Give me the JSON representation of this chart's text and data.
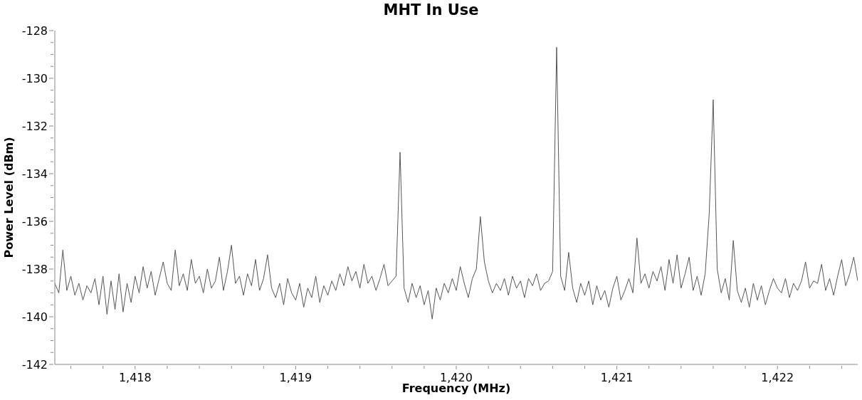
{
  "chart_data": {
    "type": "line",
    "title": "MHT In Use",
    "xlabel": "Frequency (MHz)",
    "ylabel": "Power Level (dBm)",
    "xlim": [
      1417.5,
      1422.5
    ],
    "xticks": [
      {
        "value": 1417.6,
        "label": null
      },
      {
        "value": 1417.8,
        "label": null
      },
      {
        "value": 1418,
        "label": "1,418"
      },
      {
        "value": 1418.2,
        "label": null
      },
      {
        "value": 1418.4,
        "label": null
      },
      {
        "value": 1418.6,
        "label": null
      },
      {
        "value": 1418.8,
        "label": null
      },
      {
        "value": 1419,
        "label": "1,419"
      },
      {
        "value": 1419.2,
        "label": null
      },
      {
        "value": 1419.4,
        "label": null
      },
      {
        "value": 1419.6,
        "label": null
      },
      {
        "value": 1419.8,
        "label": null
      },
      {
        "value": 1420,
        "label": "1,420"
      },
      {
        "value": 1420.2,
        "label": null
      },
      {
        "value": 1420.4,
        "label": null
      },
      {
        "value": 1420.6,
        "label": null
      },
      {
        "value": 1420.8,
        "label": null
      },
      {
        "value": 1421,
        "label": "1,421"
      },
      {
        "value": 1421.2,
        "label": null
      },
      {
        "value": 1421.4,
        "label": null
      },
      {
        "value": 1421.6,
        "label": null
      },
      {
        "value": 1421.8,
        "label": null
      },
      {
        "value": 1422,
        "label": "1,422"
      },
      {
        "value": 1422.2,
        "label": null
      },
      {
        "value": 1422.4,
        "label": null
      }
    ],
    "ylim": [
      -142,
      -128
    ],
    "yticks": [
      -142,
      {
        "value": -141.5,
        "label": null
      },
      {
        "value": -141,
        "label": null
      },
      {
        "value": -140.5,
        "label": null
      },
      -140,
      {
        "value": -139.5,
        "label": null
      },
      {
        "value": -139,
        "label": null
      },
      {
        "value": -138.5,
        "label": null
      },
      -138,
      {
        "value": -137.5,
        "label": null
      },
      {
        "value": -137,
        "label": null
      },
      {
        "value": -136.5,
        "label": null
      },
      -136,
      {
        "value": -135.5,
        "label": null
      },
      {
        "value": -135,
        "label": null
      },
      {
        "value": -134.5,
        "label": null
      },
      -134,
      {
        "value": -133.5,
        "label": null
      },
      {
        "value": -133,
        "label": null
      },
      {
        "value": -132.5,
        "label": null
      },
      -132,
      {
        "value": -131.5,
        "label": null
      },
      {
        "value": -131,
        "label": null
      },
      {
        "value": -130.5,
        "label": null
      },
      -130,
      {
        "value": -129.5,
        "label": null
      },
      {
        "value": -129,
        "label": null
      },
      {
        "value": -128.5,
        "label": null
      },
      -128
    ],
    "grid": false,
    "legend": false,
    "marker": "none",
    "line_style": "solid",
    "x": [
      1417.5,
      1417.525,
      1417.55,
      1417.575,
      1417.6,
      1417.625,
      1417.65,
      1417.675,
      1417.7,
      1417.725,
      1417.75,
      1417.775,
      1417.8,
      1417.825,
      1417.85,
      1417.875,
      1417.9,
      1417.925,
      1417.95,
      1417.975,
      1418,
      1418.025,
      1418.05,
      1418.075,
      1418.1,
      1418.125,
      1418.15,
      1418.175,
      1418.2,
      1418.225,
      1418.25,
      1418.275,
      1418.3,
      1418.325,
      1418.35,
      1418.375,
      1418.4,
      1418.425,
      1418.45,
      1418.475,
      1418.5,
      1418.525,
      1418.55,
      1418.575,
      1418.6,
      1418.625,
      1418.65,
      1418.675,
      1418.7,
      1418.725,
      1418.75,
      1418.775,
      1418.8,
      1418.825,
      1418.85,
      1418.875,
      1418.9,
      1418.925,
      1418.95,
      1418.975,
      1419,
      1419.025,
      1419.05,
      1419.075,
      1419.1,
      1419.125,
      1419.15,
      1419.175,
      1419.2,
      1419.225,
      1419.25,
      1419.275,
      1419.3,
      1419.325,
      1419.35,
      1419.375,
      1419.4,
      1419.425,
      1419.45,
      1419.475,
      1419.5,
      1419.525,
      1419.55,
      1419.575,
      1419.6,
      1419.625,
      1419.65,
      1419.675,
      1419.7,
      1419.725,
      1419.75,
      1419.775,
      1419.8,
      1419.825,
      1419.85,
      1419.875,
      1419.9,
      1419.925,
      1419.95,
      1419.975,
      1420,
      1420.025,
      1420.05,
      1420.075,
      1420.1,
      1420.125,
      1420.15,
      1420.175,
      1420.2,
      1420.225,
      1420.25,
      1420.275,
      1420.3,
      1420.325,
      1420.35,
      1420.375,
      1420.4,
      1420.425,
      1420.45,
      1420.475,
      1420.5,
      1420.525,
      1420.55,
      1420.575,
      1420.6,
      1420.625,
      1420.65,
      1420.675,
      1420.7,
      1420.725,
      1420.75,
      1420.775,
      1420.8,
      1420.825,
      1420.85,
      1420.875,
      1420.9,
      1420.925,
      1420.95,
      1420.975,
      1421,
      1421.025,
      1421.05,
      1421.075,
      1421.1,
      1421.125,
      1421.15,
      1421.175,
      1421.2,
      1421.225,
      1421.25,
      1421.275,
      1421.3,
      1421.325,
      1421.35,
      1421.375,
      1421.4,
      1421.425,
      1421.45,
      1421.475,
      1421.5,
      1421.525,
      1421.55,
      1421.575,
      1421.6,
      1421.625,
      1421.65,
      1421.675,
      1421.7,
      1421.725,
      1421.75,
      1421.775,
      1421.8,
      1421.825,
      1421.85,
      1421.875,
      1421.9,
      1421.925,
      1421.95,
      1421.975,
      1422,
      1422.025,
      1422.05,
      1422.075,
      1422.1,
      1422.125,
      1422.15,
      1422.175,
      1422.2,
      1422.225,
      1422.25,
      1422.275,
      1422.3,
      1422.325,
      1422.35,
      1422.375,
      1422.4,
      1422.425,
      1422.45,
      1422.475,
      1422.5
    ],
    "series": [
      {
        "color": "#555555",
        "values": [
          -138.6,
          -139.0,
          -137.2,
          -138.9,
          -138.3,
          -139.1,
          -138.6,
          -139.3,
          -138.7,
          -139.0,
          -138.4,
          -139.5,
          -138.3,
          -139.9,
          -138.5,
          -139.7,
          -138.2,
          -139.8,
          -138.6,
          -139.4,
          -138.3,
          -139.0,
          -137.9,
          -138.8,
          -138.1,
          -139.1,
          -138.4,
          -137.7,
          -138.6,
          -138.9,
          -137.2,
          -138.7,
          -138.2,
          -138.9,
          -137.6,
          -138.6,
          -138.3,
          -139.0,
          -138.0,
          -138.8,
          -138.5,
          -137.5,
          -138.9,
          -138.1,
          -137.0,
          -138.6,
          -138.3,
          -139.1,
          -138.2,
          -138.7,
          -137.6,
          -138.9,
          -138.4,
          -137.4,
          -138.8,
          -139.2,
          -138.6,
          -139.5,
          -138.4,
          -139.0,
          -139.3,
          -138.6,
          -139.6,
          -138.8,
          -139.2,
          -138.3,
          -139.4,
          -138.7,
          -139.1,
          -138.5,
          -138.9,
          -138.2,
          -138.7,
          -137.9,
          -138.5,
          -138.1,
          -138.8,
          -137.8,
          -138.6,
          -138.3,
          -138.9,
          -138.4,
          -137.8,
          -138.7,
          -138.5,
          -138.3,
          -133.1,
          -138.8,
          -139.4,
          -138.6,
          -139.2,
          -138.7,
          -139.5,
          -138.9,
          -140.1,
          -138.8,
          -139.3,
          -138.6,
          -139.0,
          -138.4,
          -138.9,
          -137.9,
          -138.6,
          -139.2,
          -138.4,
          -138.0,
          -135.8,
          -137.7,
          -138.5,
          -139.0,
          -138.6,
          -138.9,
          -138.4,
          -139.1,
          -138.3,
          -138.8,
          -138.5,
          -139.2,
          -138.4,
          -138.7,
          -138.2,
          -138.9,
          -138.6,
          -138.5,
          -138.1,
          -128.7,
          -138.3,
          -138.9,
          -137.3,
          -138.8,
          -139.4,
          -138.6,
          -139.1,
          -138.5,
          -139.5,
          -138.7,
          -139.3,
          -138.9,
          -139.6,
          -138.8,
          -138.3,
          -139.3,
          -138.9,
          -138.4,
          -139.0,
          -136.7,
          -138.6,
          -138.2,
          -138.8,
          -138.1,
          -138.5,
          -137.9,
          -138.9,
          -137.6,
          -138.6,
          -137.4,
          -138.8,
          -138.2,
          -137.5,
          -138.9,
          -138.3,
          -139.1,
          -138.2,
          -135.7,
          -130.9,
          -138.0,
          -139.0,
          -138.4,
          -139.3,
          -136.8,
          -138.9,
          -139.4,
          -138.8,
          -139.6,
          -138.6,
          -139.3,
          -138.7,
          -139.5,
          -138.9,
          -138.4,
          -138.8,
          -139.0,
          -138.4,
          -139.2,
          -138.6,
          -138.9,
          -138.5,
          -137.7,
          -138.8,
          -138.5,
          -138.6,
          -137.8,
          -138.9,
          -138.4,
          -139.1,
          -138.3,
          -137.6,
          -138.7,
          -138.2,
          -137.5,
          -138.5
        ]
      }
    ]
  }
}
